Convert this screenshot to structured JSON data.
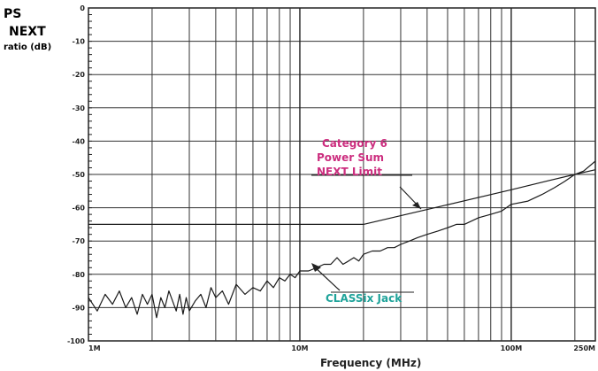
{
  "chart_data": {
    "type": "line",
    "ylabel_lines": [
      "PS",
      "NEXT",
      "ratio (dB)"
    ],
    "xlabel": "Frequency (MHz)",
    "x_scale": "log",
    "xlim": [
      1,
      250
    ],
    "ylim": [
      -100,
      0
    ],
    "grid": true,
    "y_ticks": [
      "0",
      "-10",
      "-20",
      "-30",
      "-40",
      "-50",
      "-60",
      "-70",
      "-80",
      "-90",
      "-100"
    ],
    "x_ticks": [
      {
        "value": 1,
        "label": "1M"
      },
      {
        "value": 10,
        "label": "10M"
      },
      {
        "value": 100,
        "label": "100M"
      },
      {
        "value": 250,
        "label": "250M"
      }
    ],
    "series": [
      {
        "name": "Category 6 Power Sum NEXT Limit",
        "color": "#1a1a1a",
        "x": [
          1,
          2,
          5,
          10,
          15,
          20,
          30,
          50,
          100,
          150,
          200,
          250
        ],
        "y": [
          -65,
          -65,
          -65,
          -65,
          -65,
          -65,
          -62.4,
          -59.1,
          -54.6,
          -51.9,
          -50.0,
          -48.6
        ]
      },
      {
        "name": "CLASSix Jack",
        "color": "#1a1a1a",
        "x": [
          1,
          1.1,
          1.2,
          1.3,
          1.4,
          1.5,
          1.6,
          1.7,
          1.8,
          1.9,
          2.0,
          2.1,
          2.2,
          2.3,
          2.4,
          2.5,
          2.6,
          2.7,
          2.8,
          2.9,
          3.0,
          3.2,
          3.4,
          3.6,
          3.8,
          4.0,
          4.3,
          4.6,
          5.0,
          5.5,
          6.0,
          6.5,
          7.0,
          7.5,
          8.0,
          8.5,
          9.0,
          9.5,
          10,
          11,
          12,
          13,
          14,
          15,
          16,
          17,
          18,
          19,
          20,
          22,
          24,
          26,
          28,
          30,
          33,
          36,
          40,
          45,
          50,
          55,
          60,
          70,
          80,
          90,
          100,
          120,
          140,
          160,
          180,
          200,
          220,
          250
        ],
        "y": [
          -87,
          -91,
          -86,
          -89,
          -85,
          -90,
          -87,
          -92,
          -86,
          -89,
          -86,
          -93,
          -87,
          -90,
          -85,
          -88,
          -91,
          -86,
          -92,
          -87,
          -91,
          -88,
          -86,
          -90,
          -84,
          -87,
          -85,
          -89,
          -83,
          -86,
          -84,
          -85,
          -82,
          -84,
          -81,
          -82,
          -80,
          -81,
          -79,
          -79,
          -78,
          -77,
          -77,
          -75,
          -77,
          -76,
          -75,
          -76,
          -74,
          -73,
          -73,
          -72,
          -72,
          -71,
          -70,
          -69,
          -68,
          -67,
          -66,
          -65,
          -65,
          -63,
          -62,
          -61,
          -59,
          -58,
          -56,
          -54,
          -52,
          -50,
          -49,
          -46
        ]
      }
    ],
    "annotations": [
      {
        "lines": [
          "Category 6",
          "Power Sum",
          "NEXT Limit"
        ],
        "color": "#cc2e7f"
      },
      {
        "lines": [
          "CLASSix Jack"
        ],
        "color": "#1fa39a"
      }
    ]
  }
}
